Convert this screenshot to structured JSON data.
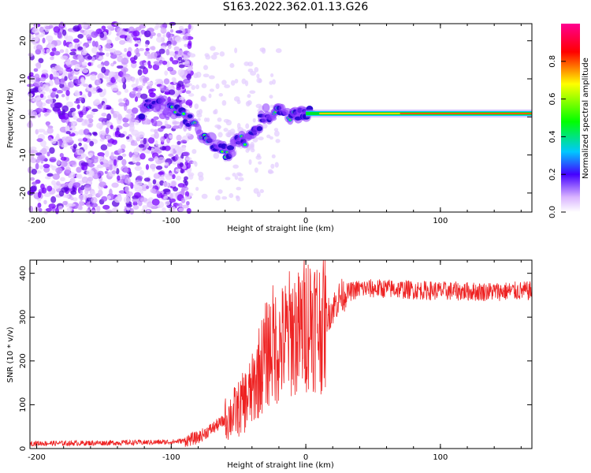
{
  "title": "S163.2022.362.01.13.G26",
  "chart_data": [
    {
      "type": "heatmap",
      "xlabel": "Height of straight line (km)",
      "ylabel": "Frequency (Hz)",
      "xlim": [
        -205,
        168
      ],
      "ylim": [
        -25,
        24.5
      ],
      "x_ticks": [
        -200,
        -100,
        0,
        100
      ],
      "y_ticks": [
        -20,
        -10,
        0,
        10,
        20
      ],
      "colorbar": {
        "label": "Normalized spectral amplitude",
        "range": [
          0,
          1
        ],
        "ticks": [
          "0.0",
          "0.2",
          "0.4",
          "0.6",
          "0.8"
        ],
        "colors": [
          "#ffffff",
          "#7a00ff",
          "#0000ff",
          "#00d8ff",
          "#00ff00",
          "#ffff00",
          "#ff0000",
          "#ff0090"
        ]
      },
      "ridge": [
        {
          "x": -120,
          "y": 3
        },
        {
          "x": -110,
          "y": 3.5
        },
        {
          "x": -100,
          "y": 2
        },
        {
          "x": -90,
          "y": 0
        },
        {
          "x": -80,
          "y": -3
        },
        {
          "x": -72,
          "y": -6
        },
        {
          "x": -65,
          "y": -8
        },
        {
          "x": -58,
          "y": -10
        },
        {
          "x": -52,
          "y": -7
        },
        {
          "x": -45,
          "y": -6
        },
        {
          "x": -40,
          "y": -4
        },
        {
          "x": -35,
          "y": -2
        },
        {
          "x": -30,
          "y": 1
        },
        {
          "x": -25,
          "y": 0
        },
        {
          "x": -20,
          "y": 1.5
        },
        {
          "x": -10,
          "y": 0.5
        },
        {
          "x": 0,
          "y": 1
        },
        {
          "x": 20,
          "y": 1
        },
        {
          "x": 60,
          "y": 1
        },
        {
          "x": 100,
          "y": 0.8
        },
        {
          "x": 168,
          "y": 0.8
        }
      ]
    },
    {
      "type": "line",
      "xlabel": "Height of straight line (km)",
      "ylabel": "SNR (10 * v/v)",
      "xlim": [
        -205,
        168
      ],
      "ylim": [
        0,
        430
      ],
      "x_ticks": [
        -200,
        -100,
        0,
        100
      ],
      "y_ticks": [
        0,
        100,
        200,
        300,
        400
      ],
      "color": "#ee2222",
      "series": [
        {
          "x": [
            -205,
            -180,
            -150,
            -120,
            -100,
            -90,
            -80,
            -70,
            -60,
            -50,
            -40,
            -35,
            -30,
            -25,
            -20,
            -15,
            -10,
            -5,
            0,
            5,
            10,
            15,
            20,
            25,
            30,
            40,
            60,
            80,
            100,
            130,
            168
          ],
          "y": [
            12,
            12,
            13,
            14,
            15,
            18,
            25,
            45,
            65,
            90,
            130,
            175,
            210,
            240,
            230,
            250,
            270,
            260,
            290,
            300,
            280,
            300,
            320,
            345,
            355,
            365,
            365,
            362,
            360,
            358,
            360
          ]
        }
      ]
    }
  ]
}
